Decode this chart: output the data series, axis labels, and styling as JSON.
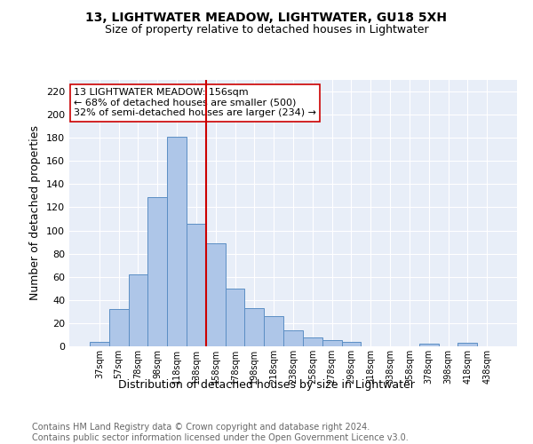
{
  "title1": "13, LIGHTWATER MEADOW, LIGHTWATER, GU18 5XH",
  "title2": "Size of property relative to detached houses in Lightwater",
  "xlabel": "Distribution of detached houses by size in Lightwater",
  "ylabel": "Number of detached properties",
  "categories": [
    "37sqm",
    "57sqm",
    "78sqm",
    "98sqm",
    "118sqm",
    "138sqm",
    "158sqm",
    "178sqm",
    "198sqm",
    "218sqm",
    "238sqm",
    "258sqm",
    "278sqm",
    "298sqm",
    "318sqm",
    "338sqm",
    "358sqm",
    "378sqm",
    "398sqm",
    "418sqm",
    "438sqm"
  ],
  "values": [
    4,
    32,
    62,
    129,
    181,
    106,
    89,
    50,
    33,
    26,
    14,
    8,
    5,
    4,
    0,
    0,
    0,
    2,
    0,
    3,
    0
  ],
  "bar_color": "#aec6e8",
  "bar_edge_color": "#5b8ec4",
  "background_color": "#e8eef8",
  "vline_color": "#cc0000",
  "annotation_text": "13 LIGHTWATER MEADOW: 156sqm\n← 68% of detached houses are smaller (500)\n32% of semi-detached houses are larger (234) →",
  "annotation_box_color": "#ffffff",
  "annotation_box_edge": "#cc0000",
  "ylim": [
    0,
    230
  ],
  "yticks": [
    0,
    20,
    40,
    60,
    80,
    100,
    120,
    140,
    160,
    180,
    200,
    220
  ],
  "footnote": "Contains HM Land Registry data © Crown copyright and database right 2024.\nContains public sector information licensed under the Open Government Licence v3.0.",
  "title1_fontsize": 10,
  "title2_fontsize": 9,
  "xlabel_fontsize": 9,
  "ylabel_fontsize": 9,
  "footnote_fontsize": 7
}
